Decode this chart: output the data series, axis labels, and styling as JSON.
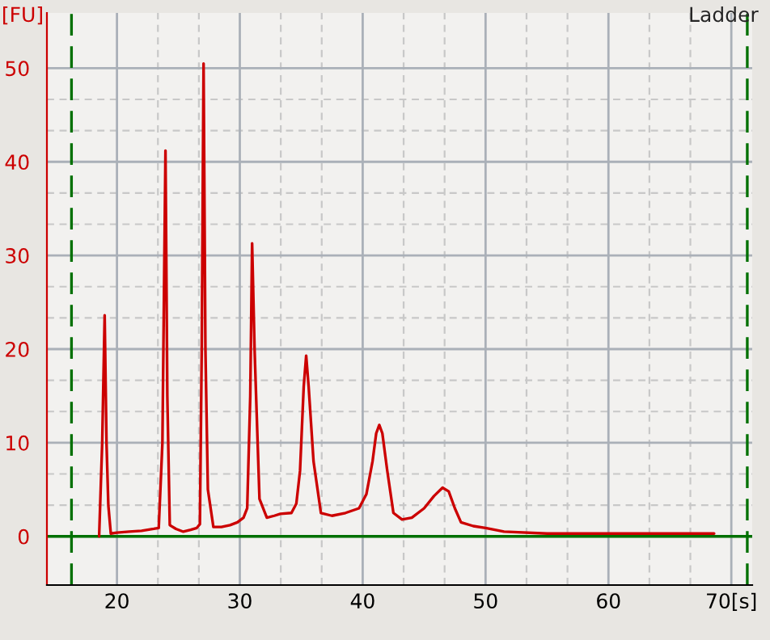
{
  "chart_data": {
    "type": "line",
    "title": "Ladder",
    "ylabel": "[FU]",
    "series": [
      {
        "color": "#cc0000",
        "x": [
          18.55,
          18.8,
          19.0,
          19.15,
          19.3,
          19.5,
          20.0,
          21.0,
          22.0,
          23.0,
          23.4,
          23.7,
          23.95,
          24.1,
          24.3,
          24.8,
          25.4,
          26.0,
          26.5,
          26.75,
          26.9,
          27.05,
          27.2,
          27.4,
          27.85,
          28.5,
          29.2,
          29.8,
          30.3,
          30.6,
          30.85,
          31.0,
          31.2,
          31.6,
          32.2,
          32.8,
          33.3,
          34.2,
          34.6,
          34.9,
          35.2,
          35.4,
          35.6,
          36.0,
          36.6,
          37.5,
          38.6,
          39.7,
          40.3,
          40.8,
          41.1,
          41.35,
          41.6,
          42.0,
          42.5,
          43.2,
          44.0,
          45.0,
          45.8,
          46.5,
          47.0,
          47.5,
          48.0,
          49.0,
          50.0,
          51.5,
          55.0,
          60.0,
          65.0,
          68.6
        ],
        "values": [
          0,
          10,
          23.6,
          10,
          3.3,
          0.3,
          0.4,
          0.5,
          0.6,
          0.8,
          0.9,
          10,
          41.2,
          15,
          1.2,
          0.8,
          0.5,
          0.7,
          0.9,
          1.3,
          20,
          50.5,
          20,
          5,
          1.0,
          1.0,
          1.2,
          1.5,
          2.0,
          3.0,
          15,
          31.3,
          20,
          4.0,
          2.0,
          2.2,
          2.4,
          2.5,
          3.5,
          7.0,
          16,
          19.3,
          16,
          8.0,
          2.5,
          2.2,
          2.5,
          3.0,
          4.5,
          8.0,
          11.0,
          11.9,
          11.0,
          7.0,
          2.5,
          1.8,
          2.0,
          3.0,
          4.3,
          5.2,
          4.8,
          3.0,
          1.5,
          1.1,
          0.9,
          0.5,
          0.3,
          0.3,
          0.3,
          0.3
        ]
      }
    ],
    "xlim": [
      14.3,
      71.7
    ],
    "ylim": [
      -5.2,
      55.9
    ],
    "xticks": [
      20,
      30,
      40,
      50,
      60,
      {
        "value": 70,
        "label": "70[s]"
      }
    ],
    "yticks": [
      0,
      10,
      20,
      30,
      40,
      50
    ],
    "ref_lines": [
      {
        "axis": "x",
        "value": 16.3,
        "color": "#007000",
        "line_style": "dashed"
      },
      {
        "axis": "x",
        "value": 71.3,
        "color": "#007000",
        "line_style": "dashed"
      },
      {
        "axis": "y",
        "value": 0,
        "color": "#007000",
        "line_style": "solid"
      }
    ],
    "grid": true,
    "legend": false
  }
}
